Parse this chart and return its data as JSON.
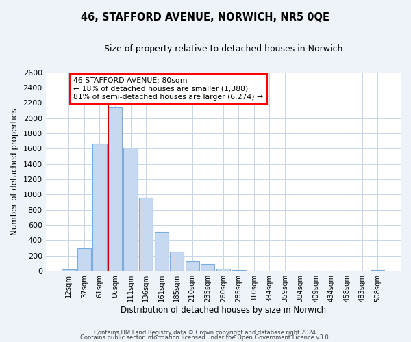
{
  "title": "46, STAFFORD AVENUE, NORWICH, NR5 0QE",
  "subtitle": "Size of property relative to detached houses in Norwich",
  "xlabel": "Distribution of detached houses by size in Norwich",
  "ylabel": "Number of detached properties",
  "bin_labels": [
    "12sqm",
    "37sqm",
    "61sqm",
    "86sqm",
    "111sqm",
    "136sqm",
    "161sqm",
    "185sqm",
    "210sqm",
    "235sqm",
    "260sqm",
    "285sqm",
    "310sqm",
    "334sqm",
    "359sqm",
    "384sqm",
    "409sqm",
    "434sqm",
    "458sqm",
    "483sqm",
    "508sqm"
  ],
  "bar_heights": [
    20,
    300,
    1670,
    2140,
    1610,
    960,
    510,
    255,
    125,
    95,
    30,
    12,
    5,
    4,
    3,
    2,
    1,
    1,
    0,
    0,
    15
  ],
  "bar_color": "#c6d9f0",
  "bar_edge_color": "#7aaddb",
  "annotation_line1": "46 STAFFORD AVENUE: 80sqm",
  "annotation_line2": "← 18% of detached houses are smaller (1,388)",
  "annotation_line3": "81% of semi-detached houses are larger (6,274) →",
  "annotation_box_color": "white",
  "annotation_box_edge_color": "red",
  "red_line_color": "#cc0000",
  "ylim": [
    0,
    2600
  ],
  "yticks": [
    0,
    200,
    400,
    600,
    800,
    1000,
    1200,
    1400,
    1600,
    1800,
    2000,
    2200,
    2400,
    2600
  ],
  "footer_line1": "Contains HM Land Registry data © Crown copyright and database right 2024.",
  "footer_line2": "Contains public sector information licensed under the Open Government Licence v3.0.",
  "background_color": "#eef2f9",
  "plot_bg_color": "#ffffff",
  "grid_color": "#c8d4e8"
}
